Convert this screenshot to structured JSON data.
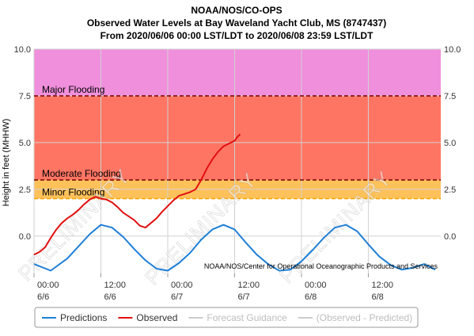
{
  "header": {
    "title_line1": "NOAA/NOS/CO-OPS",
    "title_line2": "Observed Water Levels at Bay Waveland Yacht Club, MS (8747437)",
    "title_line3": "From 2020/06/06 00:00 LST/LDT to 2020/06/08 23:59 LST/LDT"
  },
  "colors": {
    "major": "#f08fdc",
    "moderate": "#ff7563",
    "minor": "#ffc15a",
    "minor_line": "#f5a400",
    "predictions": "#1f7fd6",
    "observed": "#e01010",
    "grid": "#d2d2d2",
    "legend_muted": "#bdbdbd"
  },
  "credit": "NOAA/NOS/Center for Operational Oceanographic Products and Services",
  "watermark": "PRELIMINARY",
  "legend": [
    {
      "label": "Predictions",
      "color": "#1f7fd6",
      "muted": false
    },
    {
      "label": "Observed",
      "color": "#e01010",
      "muted": false
    },
    {
      "label": "Forecast Guidance",
      "color": "#cccccc",
      "muted": true
    },
    {
      "label": "(Observed - Predicted)",
      "color": "#cccccc",
      "muted": true
    }
  ],
  "chart_data": {
    "type": "line",
    "title": "Observed Water Levels at Bay Waveland Yacht Club, MS (8747437)",
    "ylabel": "Height in feet (MHHW)",
    "ylim": [
      -2.0,
      10.0
    ],
    "xlim_hours": [
      0,
      72
    ],
    "yticks": [
      0.0,
      2.5,
      5.0,
      7.5,
      10.0
    ],
    "ytick_labels": [
      "0.0",
      "2.5",
      "5.0",
      "7.5",
      "10.0"
    ],
    "xticks": [
      {
        "hour": 0,
        "time": "00:00",
        "date": "6/6"
      },
      {
        "hour": 12,
        "time": "12:00",
        "date": "6/6"
      },
      {
        "hour": 24,
        "time": "00:00",
        "date": "6/7"
      },
      {
        "hour": 36,
        "time": "12:00",
        "date": "6/7"
      },
      {
        "hour": 48,
        "time": "00:00",
        "date": "6/8"
      },
      {
        "hour": 60,
        "time": "12:00",
        "date": "6/8"
      }
    ],
    "thresholds": [
      {
        "name": "Major Flooding",
        "value": 7.5
      },
      {
        "name": "Moderate Flooding",
        "value": 3.0
      },
      {
        "name": "Minor Flooding",
        "value": 2.0
      }
    ],
    "series": [
      {
        "name": "Predictions",
        "x": [
          0,
          3,
          6,
          8,
          10,
          12,
          14,
          16,
          18,
          20,
          22,
          24,
          26,
          28,
          30,
          32,
          34,
          36,
          38,
          40,
          42,
          44,
          46,
          48,
          50,
          52,
          54,
          56,
          58,
          60,
          62,
          64,
          66,
          68,
          70,
          72
        ],
        "y": [
          -1.5,
          -1.85,
          -1.2,
          -0.55,
          0.1,
          0.6,
          0.45,
          -0.05,
          -0.7,
          -1.3,
          -1.75,
          -1.85,
          -1.45,
          -0.9,
          -0.2,
          0.35,
          0.6,
          0.35,
          -0.35,
          -1.0,
          -1.5,
          -1.85,
          -1.8,
          -1.35,
          -0.75,
          -0.1,
          0.45,
          0.6,
          0.25,
          -0.45,
          -1.1,
          -1.55,
          -1.8,
          -1.7,
          -1.5,
          -1.8
        ]
      },
      {
        "name": "Observed",
        "x": [
          0,
          1,
          2,
          3,
          4,
          5,
          6,
          7,
          8,
          9,
          10,
          11,
          12,
          13,
          14,
          15,
          16,
          17,
          18,
          19,
          20,
          21,
          22,
          23,
          24,
          25,
          26,
          27,
          28,
          29,
          30,
          31,
          32,
          33,
          34,
          35,
          36,
          36.5,
          37
        ],
        "y": [
          -1.0,
          -0.85,
          -0.6,
          -0.1,
          0.35,
          0.7,
          0.95,
          1.15,
          1.4,
          1.7,
          1.95,
          2.1,
          2.0,
          1.95,
          1.8,
          1.55,
          1.25,
          1.05,
          0.85,
          0.55,
          0.45,
          0.7,
          0.95,
          1.3,
          1.6,
          1.9,
          2.15,
          2.25,
          2.35,
          2.5,
          3.0,
          3.6,
          4.1,
          4.5,
          4.8,
          4.95,
          5.1,
          5.3,
          5.45
        ]
      }
    ]
  }
}
